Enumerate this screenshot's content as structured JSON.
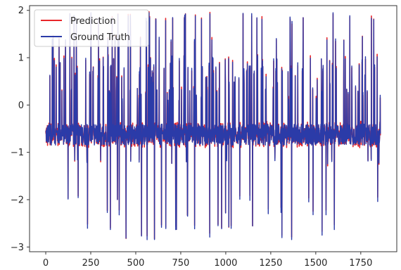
{
  "chart_data": {
    "type": "line",
    "title": "",
    "xlabel": "",
    "ylabel": "",
    "xlim": [
      -90,
      1950
    ],
    "ylim": [
      -3.1,
      2.1
    ],
    "xticks": [
      0,
      250,
      500,
      750,
      1000,
      1250,
      1500,
      1750
    ],
    "yticks": [
      -3,
      -2,
      -1,
      0,
      1,
      2
    ],
    "grid": false,
    "legend_position": "top-left",
    "series": [
      {
        "name": "Prediction",
        "color": "#e8262a"
      },
      {
        "name": "Ground Truth",
        "color": "#2b3ba8"
      }
    ],
    "n_points": 1860,
    "baseline_range": [
      -0.85,
      -0.4
    ],
    "spike_up_levels": [
      0.3,
      0.8,
      1.0,
      1.4,
      1.8,
      1.9
    ],
    "spike_down_levels": [
      -1.2,
      -2.0,
      -2.3,
      -2.6,
      -2.8
    ]
  }
}
